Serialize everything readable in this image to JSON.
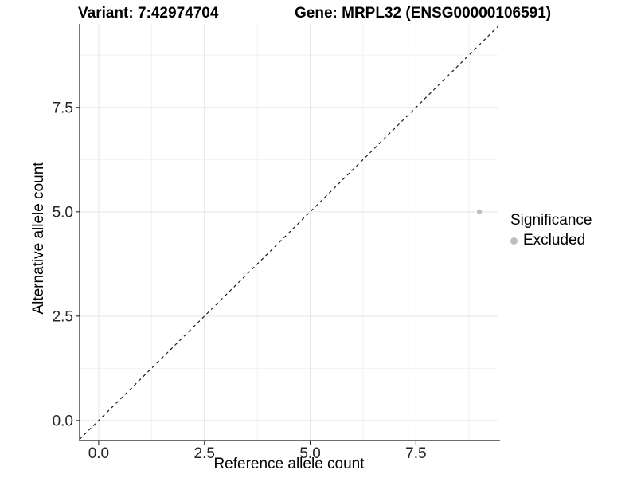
{
  "header": {
    "variant_title": "Variant: 7:42974704",
    "gene_title": "Gene: MRPL32 (ENSG00000106591)"
  },
  "axes": {
    "x": {
      "title": "Reference allele count",
      "tick_labels": [
        "0.0",
        "2.5",
        "5.0",
        "7.5"
      ]
    },
    "y": {
      "title": "Alternative allele count",
      "tick_labels": [
        "0.0",
        "2.5",
        "5.0",
        "7.5"
      ]
    }
  },
  "legend": {
    "title": "Significance",
    "entries": [
      {
        "label": "Excluded",
        "color": "#bebebe"
      }
    ]
  },
  "chart_data": {
    "type": "scatter",
    "title": "Variant: 7:42974704 | Gene: MRPL32 (ENSG00000106591)",
    "xlabel": "Reference allele count",
    "ylabel": "Alternative allele count",
    "xlim": [
      -0.45,
      9.45
    ],
    "ylim": [
      -0.48,
      9.5
    ],
    "x_ticks": [
      0,
      2.5,
      5,
      7.5
    ],
    "y_ticks": [
      0,
      2.5,
      5,
      7.5
    ],
    "x_minor_ticks": [
      1.25,
      3.75,
      6.25,
      8.75
    ],
    "y_minor_ticks": [
      1.25,
      3.75,
      6.25,
      8.75
    ],
    "grid": true,
    "legend_title": "Significance",
    "legend_position": "right",
    "series": [
      {
        "name": "Excluded",
        "color": "#bebebe",
        "points": [
          {
            "x": 9,
            "y": 5
          }
        ]
      }
    ],
    "reference_line": {
      "kind": "identity",
      "slope": 1,
      "intercept": 0,
      "style": "dashed",
      "color": "#1a1a1a"
    }
  },
  "style": {
    "background": "#ffffff",
    "major_grid": "#e5e5e5",
    "minor_grid": "#f2f2f2",
    "axis_line": "#1a1a1a",
    "tick_mark": "#333333",
    "tick_label": "#262626"
  }
}
